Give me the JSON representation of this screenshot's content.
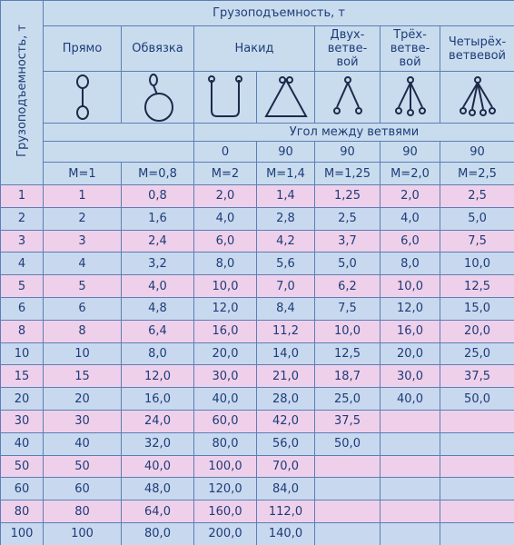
{
  "header": {
    "side_title": "Грузоподъемность, т",
    "title": "Грузоподъемность, т",
    "columns": [
      "Прямо",
      "Обвязка",
      "Накид",
      "Двух-\nветве-\nвой",
      "Трёх-\nветве-\nвой",
      "Четырёх-\nветвевой"
    ],
    "angle_title": "Угол между ветвями",
    "angles": [
      "0",
      "90",
      "90",
      "90",
      "90"
    ],
    "factors": [
      "M=1",
      "M=0,8",
      "M=2",
      "M=1,4",
      "M=1,25",
      "M=2,0",
      "M=2,5"
    ]
  },
  "table": {
    "rows": [
      [
        "1",
        "1",
        "0,8",
        "2,0",
        "1,4",
        "1,25",
        "2,0",
        "2,5"
      ],
      [
        "2",
        "2",
        "1,6",
        "4,0",
        "2,8",
        "2,5",
        "4,0",
        "5,0"
      ],
      [
        "3",
        "3",
        "2,4",
        "6,0",
        "4,2",
        "3,7",
        "6,0",
        "7,5"
      ],
      [
        "4",
        "4",
        "3,2",
        "8,0",
        "5,6",
        "5,0",
        "8,0",
        "10,0"
      ],
      [
        "5",
        "5",
        "4,0",
        "10,0",
        "7,0",
        "6,2",
        "10,0",
        "12,5"
      ],
      [
        "6",
        "6",
        "4,8",
        "12,0",
        "8,4",
        "7,5",
        "12,0",
        "15,0"
      ],
      [
        "8",
        "8",
        "6,4",
        "16,0",
        "11,2",
        "10,0",
        "16,0",
        "20,0"
      ],
      [
        "10",
        "10",
        "8,0",
        "20,0",
        "14,0",
        "12,5",
        "20,0",
        "25,0"
      ],
      [
        "15",
        "15",
        "12,0",
        "30,0",
        "21,0",
        "18,7",
        "30,0",
        "37,5"
      ],
      [
        "20",
        "20",
        "16,0",
        "40,0",
        "28,0",
        "25,0",
        "40,0",
        "50,0"
      ],
      [
        "30",
        "30",
        "24,0",
        "60,0",
        "42,0",
        "37,5",
        null,
        null
      ],
      [
        "40",
        "40",
        "32,0",
        "80,0",
        "56,0",
        "50,0",
        null,
        null
      ],
      [
        "50",
        "50",
        "40,0",
        "100,0",
        "70,0",
        null,
        null,
        null
      ],
      [
        "60",
        "60",
        "48,0",
        "120,0",
        "84,0",
        null,
        null,
        null
      ],
      [
        "80",
        "80",
        "64,0",
        "160,0",
        "112,0",
        null,
        null,
        null
      ],
      [
        "100",
        "100",
        "80,0",
        "200,0",
        "140,0",
        null,
        null,
        null
      ]
    ]
  }
}
